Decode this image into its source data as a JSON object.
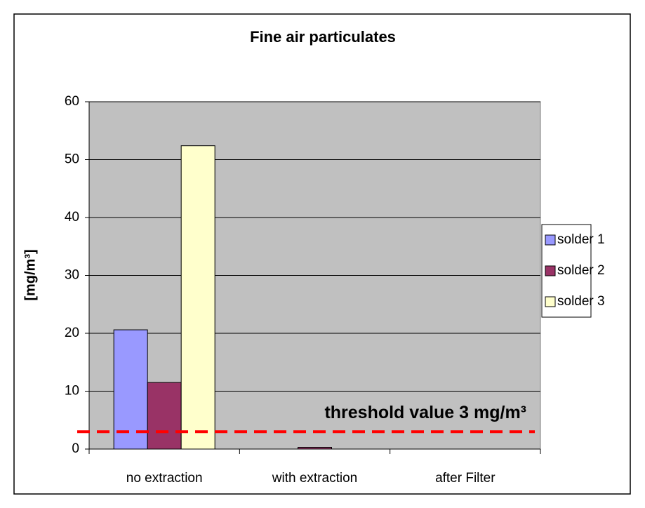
{
  "chart_data": {
    "type": "bar",
    "title": "Fine air particulates",
    "y_label": "[mg/m³]",
    "categories": [
      "no extraction",
      "with extraction",
      "after Filter"
    ],
    "series": [
      {
        "name": "solder 1",
        "color": "#9999ff",
        "values": [
          20.6,
          0,
          0
        ]
      },
      {
        "name": "solder 2",
        "color": "#993366",
        "values": [
          11.5,
          0.3,
          0
        ]
      },
      {
        "name": "solder 3",
        "color": "#ffffcc",
        "values": [
          52.4,
          0,
          0
        ]
      }
    ],
    "ylim": [
      0,
      60
    ],
    "yticks": [
      0,
      10,
      20,
      30,
      40,
      50,
      60
    ],
    "grid": true,
    "legend": "right",
    "threshold": {
      "value": 3,
      "label": "threshold value 3 mg/m³",
      "color": "#ff0000"
    }
  }
}
